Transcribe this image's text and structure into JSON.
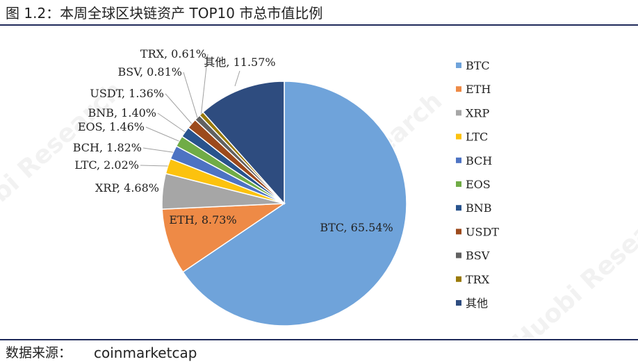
{
  "header": {
    "title": "图 1.2：本周全球区块链资产 TOP10 市总市值比例"
  },
  "footer": {
    "source_label": "数据来源：",
    "source_value": "coinmarketcap"
  },
  "watermark": {
    "text": "Huobi Research"
  },
  "chart_data": {
    "type": "pie",
    "title": "",
    "categories": [
      "BTC",
      "ETH",
      "XRP",
      "LTC",
      "BCH",
      "EOS",
      "BNB",
      "USDT",
      "BSV",
      "TRX",
      "其他"
    ],
    "values": [
      65.54,
      8.73,
      4.68,
      2.02,
      1.82,
      1.46,
      1.4,
      1.36,
      0.81,
      0.61,
      11.57
    ],
    "labels": [
      "BTC, 65.54%",
      "ETH, 8.73%",
      "XRP, 4.68%",
      "LTC, 2.02%",
      "BCH, 1.82%",
      "EOS, 1.46%",
      "BNB, 1.40%",
      "USDT, 1.36%",
      "BSV, 0.81%",
      "TRX, 0.61%",
      "其他, 11.57%"
    ],
    "colors": [
      "#6fa3da",
      "#ee8a46",
      "#a6a6a6",
      "#fcc20e",
      "#4d73c3",
      "#70ac46",
      "#28538d",
      "#9c4a1c",
      "#616161",
      "#9a7a0a",
      "#2e4c7f"
    ],
    "legend_position": "right",
    "start_angle": "12 o'clock",
    "direction": "clockwise"
  }
}
